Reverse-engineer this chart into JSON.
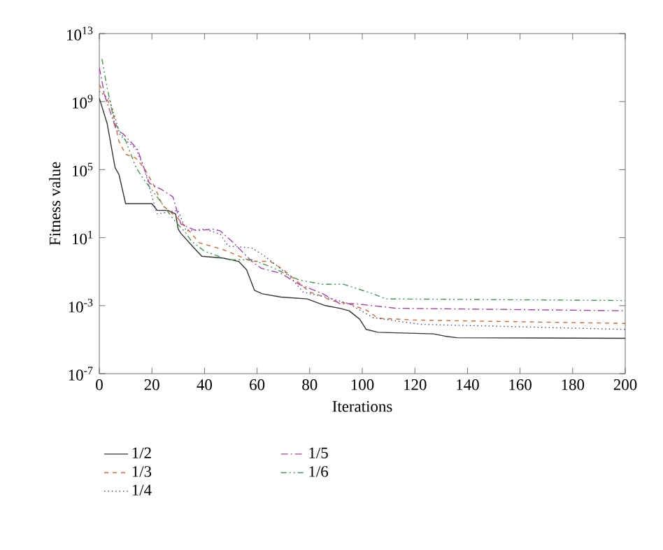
{
  "chart_data": {
    "type": "line",
    "xlabel": "Iterations",
    "ylabel": "Fitness value",
    "log": "y",
    "xlim": [
      0,
      200
    ],
    "xticks": [
      0,
      20,
      40,
      60,
      80,
      100,
      120,
      140,
      160,
      180,
      200
    ],
    "ylim": [
      1e-07,
      10000000000000.0
    ],
    "yticks": [
      {
        "value": 1e-07,
        "label": "10$^{-7}$"
      },
      {
        "value": 0.001,
        "label": "10$^{-3}$"
      },
      {
        "value": 10,
        "label": "10$^{1}$"
      },
      {
        "value": 100000,
        "label": "10$^{5}$"
      },
      {
        "value": 1000000000.0,
        "label": "10$^{9}$"
      },
      {
        "value": 10000000000000.0,
        "label": "10$^{13}$"
      }
    ],
    "grid": false,
    "legend": "bottom",
    "marker": "none",
    "series": [
      {
        "name": "1/2",
        "color": "#333333",
        "line_style": "solid",
        "x": [
          0,
          3,
          6,
          7.5,
          10,
          20,
          22,
          26,
          29,
          30,
          31,
          36,
          39,
          47,
          53,
          56,
          59,
          62,
          69,
          79,
          86,
          91.5,
          95,
          99,
          101.5,
          106,
          127,
          131.5,
          136,
          200
        ],
        "values": [
          1600000000.0,
          50000000.0,
          130000.0,
          50000.0,
          1000,
          1000,
          400,
          400,
          250,
          32,
          18,
          2.5,
          0.8,
          0.63,
          0.4,
          0.13,
          0.008,
          0.005,
          0.0032,
          0.0025,
          0.001,
          0.0007,
          0.0005,
          0.00016,
          4e-05,
          2.7e-05,
          2.2e-05,
          1.6e-05,
          1.3e-05,
          1.2e-05
        ]
      },
      {
        "name": "1/3",
        "color": "#e0642a",
        "line_style": "dashed",
        "x": [
          0,
          5,
          7.4,
          10,
          13.7,
          17,
          21,
          24,
          30,
          35,
          38,
          47,
          58,
          65,
          70,
          80,
          85,
          88,
          95,
          102,
          106,
          122,
          200
        ],
        "values": [
          10000000000.0,
          320000000.0,
          5000000.0,
          800000.0,
          500000.0,
          130000.0,
          10000.0,
          800,
          130,
          18,
          5,
          2,
          0.4,
          0.4,
          0.13,
          0.0063,
          0.0035,
          0.002,
          0.0013,
          0.0005,
          0.00018,
          0.00014,
          9e-05
        ]
      },
      {
        "name": "1/4",
        "color": "#3a3aa0",
        "line_style": "dotted",
        "x": [
          0,
          4,
          8,
          14,
          17,
          19,
          21,
          22,
          30,
          33,
          40,
          46,
          49,
          58,
          63,
          72,
          77.5,
          85,
          95,
          104,
          106,
          122,
          200
        ],
        "values": [
          4000000000.0,
          1300000000.0,
          10000000.0,
          1600000.0,
          130000.0,
          10000.0,
          800,
          250,
          400,
          25,
          32,
          16,
          3.2,
          2.5,
          0.8,
          0.063,
          0.0063,
          0.0035,
          0.0013,
          0.0002,
          0.00018,
          8e-05,
          4e-05
        ]
      },
      {
        "name": "1/5",
        "color": "#b03cb0",
        "line_style": "dashdotted",
        "x": [
          0,
          2,
          6.5,
          9,
          14.5,
          19,
          23.5,
          28,
          31,
          37,
          43,
          46,
          51,
          58,
          61.5,
          69,
          76,
          85,
          91.5,
          97,
          104,
          113,
          200
        ],
        "values": [
          100000000000.0,
          2500000000.0,
          20000000.0,
          13000000.0,
          1600000.0,
          16000.0,
          7000,
          2500,
          63,
          25,
          32,
          25,
          5,
          0.4,
          0.16,
          0.08,
          0.018,
          0.005,
          0.0013,
          0.0013,
          0.001,
          0.0007,
          0.0005
        ]
      },
      {
        "name": "1/6",
        "color": "#3f9a4a",
        "line_style": "dashdotdotted",
        "x": [
          1,
          3,
          5.7,
          10,
          14,
          17,
          22,
          28,
          33,
          35,
          40,
          49,
          58,
          65,
          76,
          85,
          93,
          104,
          109,
          200
        ],
        "values": [
          320000000000.0,
          6300000000.0,
          63000000.0,
          5000000.0,
          130000.0,
          25000.0,
          2500,
          130,
          18,
          6.3,
          1.6,
          0.5,
          0.5,
          0.2,
          0.032,
          0.018,
          0.018,
          0.005,
          0.0025,
          0.002
        ]
      }
    ]
  }
}
